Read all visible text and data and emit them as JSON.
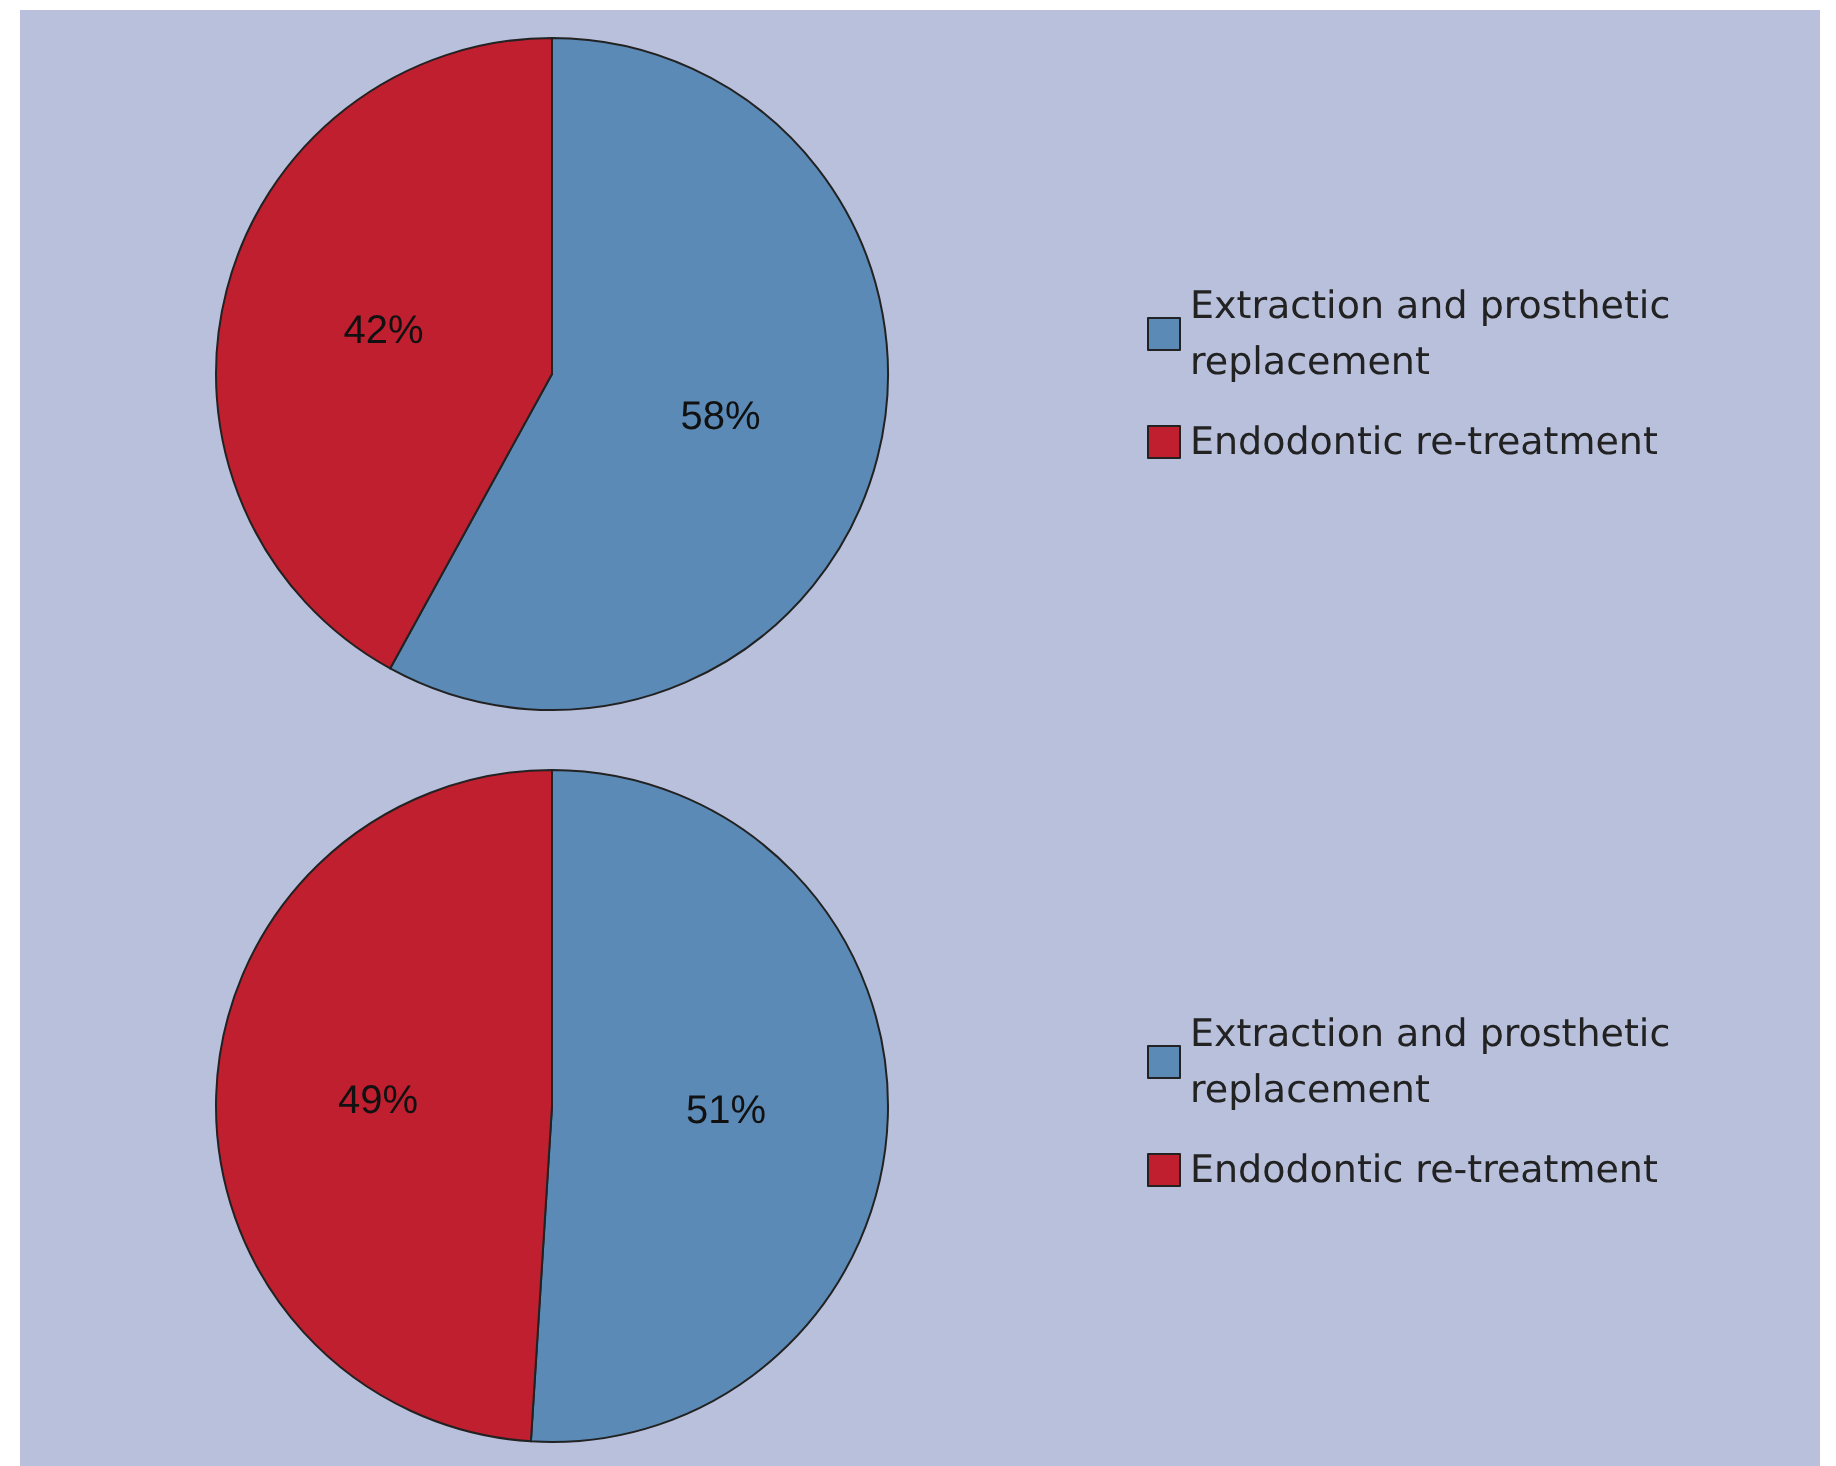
{
  "chart_data": [
    {
      "type": "pie",
      "categories": [
        "Extraction and prosthetic replacement",
        "Endodontic re-treatment"
      ],
      "values": [
        58,
        42
      ],
      "colors": [
        "#5a8ab5",
        "#c01f30"
      ],
      "value_labels": [
        "58%",
        "42%"
      ],
      "legend": "right"
    },
    {
      "type": "pie",
      "categories": [
        "Extraction and prosthetic replacement",
        "Endodontic re-treatment"
      ],
      "values": [
        51,
        49
      ],
      "colors": [
        "#5a8ab5",
        "#c01f30"
      ],
      "value_labels": [
        "51%",
        "49%"
      ],
      "legend": "right"
    }
  ]
}
